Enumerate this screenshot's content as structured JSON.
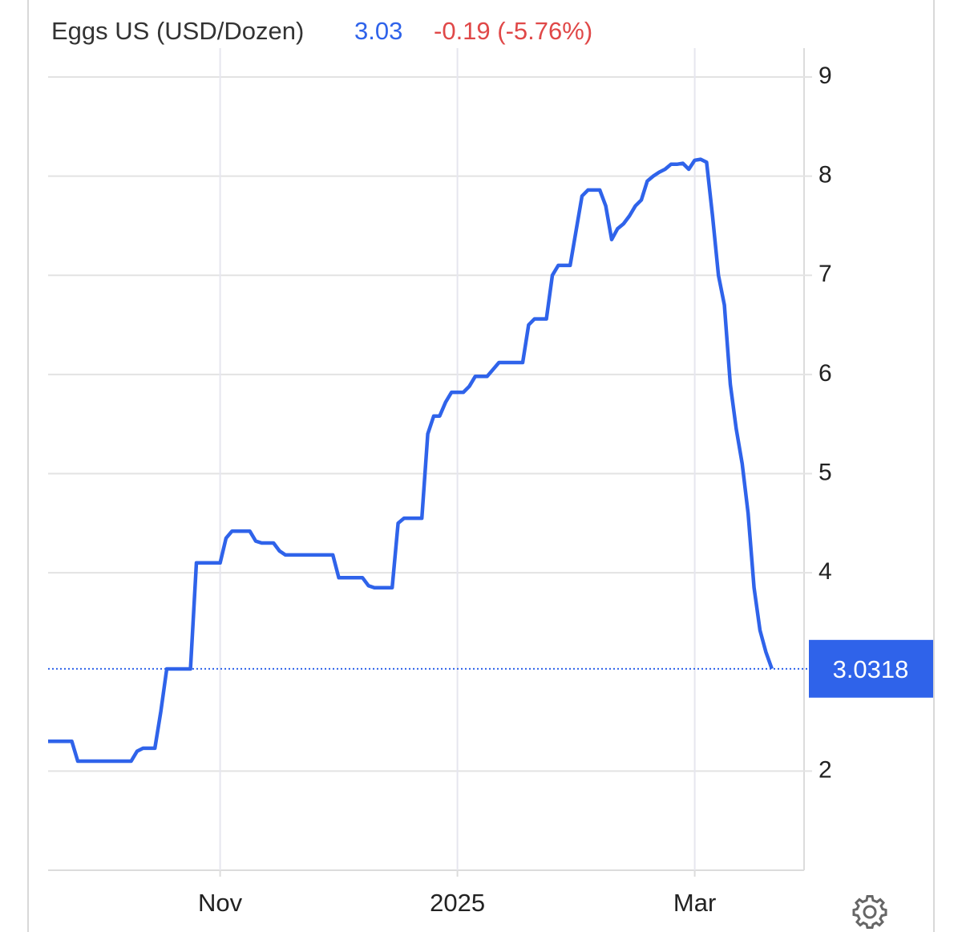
{
  "chart_data": {
    "type": "line",
    "title": "Eggs US (USD/Dozen)",
    "price": "3.03",
    "change": "-0.19 (-5.76%)",
    "current_value": 3.0318,
    "categories": [
      null,
      null,
      null,
      null,
      null,
      null,
      null,
      null,
      null,
      null,
      null,
      null,
      null,
      null,
      null,
      null,
      null,
      null,
      null,
      null,
      null,
      null,
      null,
      null,
      null,
      null,
      null,
      null,
      null,
      "Nov",
      null,
      null,
      null,
      null,
      null,
      null,
      null,
      null,
      null,
      null,
      null,
      null,
      null,
      null,
      null,
      null,
      null,
      null,
      null,
      null,
      null,
      null,
      null,
      null,
      null,
      null,
      null,
      null,
      null,
      null,
      null,
      null,
      null,
      null,
      null,
      null,
      null,
      null,
      null,
      "2025",
      null,
      null,
      null,
      null,
      null,
      null,
      null,
      null,
      null,
      null,
      null,
      null,
      null,
      null,
      null,
      null,
      null,
      null,
      null,
      null,
      null,
      null,
      null,
      null,
      null,
      null,
      null,
      null,
      null,
      null,
      null,
      null,
      null,
      null,
      null,
      null,
      null,
      null,
      null,
      "Mar",
      null,
      null,
      null,
      null,
      null,
      null,
      null,
      null,
      null,
      null,
      null,
      null,
      null
    ],
    "series": [
      {
        "name": "Eggs US",
        "color": "#2f63ea",
        "values": [
          2.3,
          2.3,
          2.3,
          2.3,
          2.3,
          2.1,
          2.1,
          2.1,
          2.1,
          2.1,
          2.1,
          2.1,
          2.1,
          2.1,
          2.1,
          2.2,
          2.23,
          2.23,
          2.23,
          2.6,
          3.03,
          3.03,
          3.03,
          3.03,
          3.03,
          4.1,
          4.1,
          4.1,
          4.1,
          4.1,
          4.35,
          4.42,
          4.42,
          4.42,
          4.42,
          4.32,
          4.3,
          4.3,
          4.3,
          4.22,
          4.18,
          4.18,
          4.18,
          4.18,
          4.18,
          4.18,
          4.18,
          4.18,
          4.18,
          3.95,
          3.95,
          3.95,
          3.95,
          3.95,
          3.87,
          3.85,
          3.85,
          3.85,
          3.85,
          4.5,
          4.55,
          4.55,
          4.55,
          4.55,
          5.4,
          5.58,
          5.58,
          5.72,
          5.82,
          5.82,
          5.82,
          5.88,
          5.98,
          5.98,
          5.98,
          6.05,
          6.12,
          6.12,
          6.12,
          6.12,
          6.12,
          6.5,
          6.56,
          6.56,
          6.56,
          7.0,
          7.1,
          7.1,
          7.1,
          7.45,
          7.8,
          7.86,
          7.86,
          7.86,
          7.7,
          7.36,
          7.47,
          7.52,
          7.6,
          7.7,
          7.76,
          7.95,
          8.0,
          8.04,
          8.07,
          8.12,
          8.12,
          8.13,
          8.07,
          8.16,
          8.17,
          8.14,
          7.6,
          7.0,
          6.7,
          5.9,
          5.45,
          5.1,
          4.6,
          3.85,
          3.42,
          3.2,
          3.0318
        ]
      }
    ],
    "ylim": [
      1,
      9
    ],
    "yticks": [
      2,
      4,
      5,
      6,
      7,
      8,
      9
    ],
    "grid": true
  }
}
